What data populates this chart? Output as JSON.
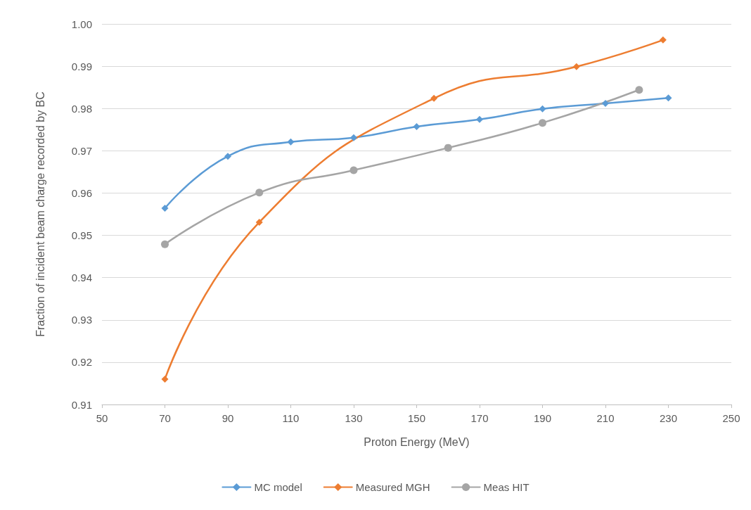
{
  "chart_data": {
    "type": "line",
    "xlabel": "Proton Energy (MeV)",
    "ylabel": "Fraction of incident beam charge recorded by BC",
    "xlim": [
      50,
      250
    ],
    "xticks": [
      50,
      70,
      90,
      110,
      130,
      150,
      170,
      190,
      210,
      230,
      250
    ],
    "ylim": [
      0.91,
      1.0
    ],
    "yticks": [
      0.91,
      0.92,
      0.93,
      0.94,
      0.95,
      0.96,
      0.97,
      0.98,
      0.99,
      {
        "value": 1.0,
        "label": "1.00"
      }
    ],
    "grid": "y",
    "legend": "bottom",
    "line_style": "solid",
    "series": [
      {
        "name": "MC model",
        "color": "#5b9bd5",
        "marker": "diamond",
        "x": [
          70,
          90,
          110,
          130,
          150,
          170,
          190,
          210,
          230
        ],
        "values": [
          0.9564,
          0.9687,
          0.9721,
          0.9731,
          0.9757,
          0.9774,
          0.9799,
          0.9812,
          0.9825
        ]
      },
      {
        "name": "Measured MGH",
        "color": "#ed7d31",
        "marker": "diamond",
        "x": [
          70,
          100,
          155.5,
          200.8,
          228.3
        ],
        "values": [
          0.916,
          0.9531,
          0.9824,
          0.9899,
          0.9962
        ]
      },
      {
        "name": "Meas HIT",
        "color": "#a5a5a5",
        "marker": "circle",
        "x": [
          70,
          100,
          130,
          160,
          190,
          220.7
        ],
        "values": [
          0.9479,
          0.9601,
          0.9654,
          0.9707,
          0.9766,
          0.9844
        ]
      }
    ]
  }
}
